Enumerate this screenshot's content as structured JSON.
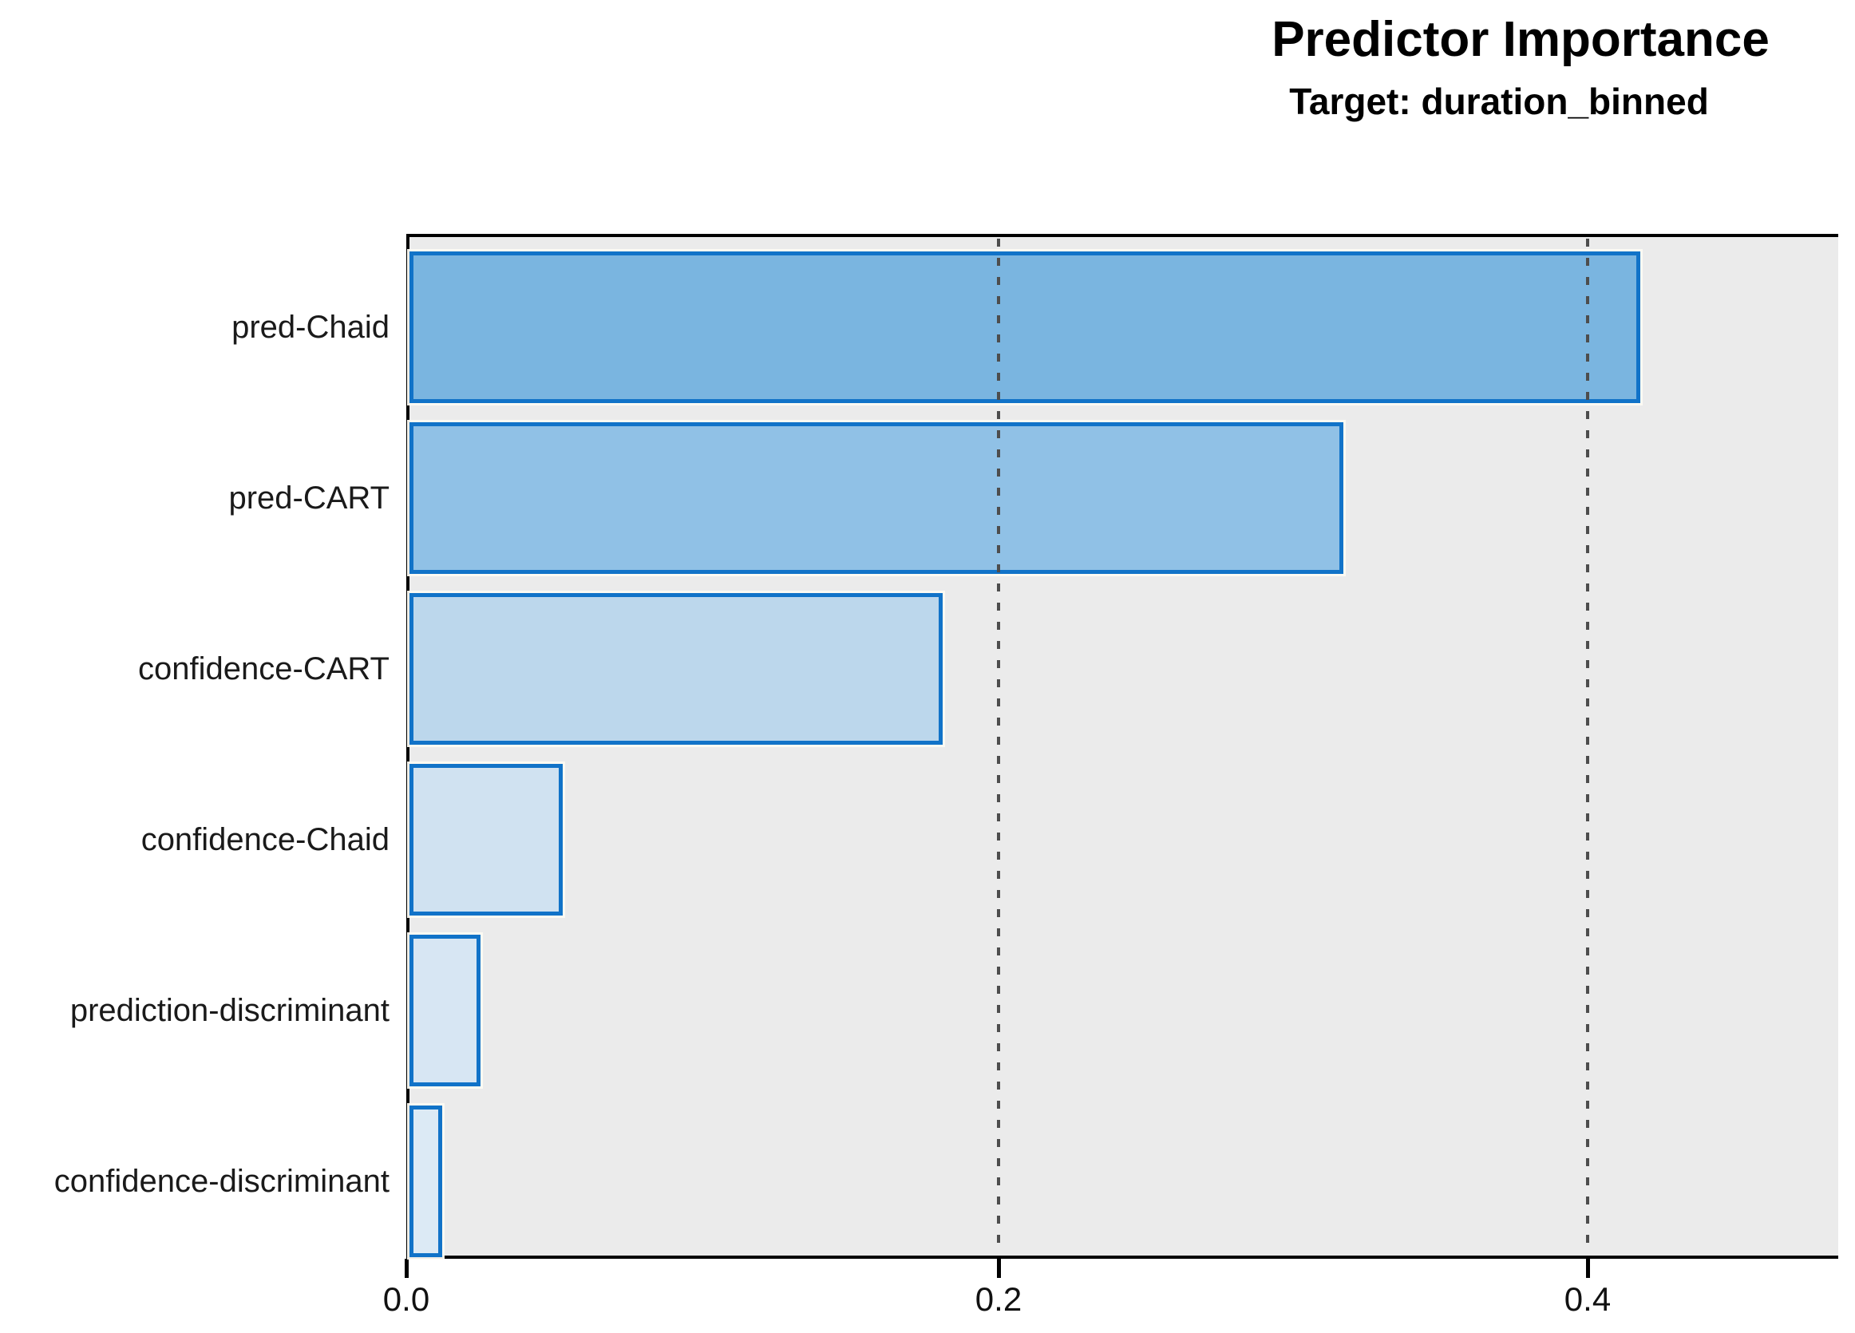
{
  "chart": {
    "title": "Predictor Importance",
    "subtitle": "Target: duration_binned"
  },
  "chart_data": {
    "type": "bar",
    "orientation": "horizontal",
    "title": "Predictor Importance",
    "subtitle": "Target: duration_binned",
    "categories": [
      "pred-Chaid",
      "pred-CART",
      "confidence-CART",
      "confidence-Chaid",
      "prediction-discriminant",
      "confidence-discriminant"
    ],
    "values": [
      0.418,
      0.317,
      0.181,
      0.052,
      0.024,
      0.011
    ],
    "xlabel": "",
    "ylabel": "",
    "xlim": [
      0,
      0.485
    ],
    "x_ticks": [
      0.0,
      0.2,
      0.4
    ],
    "x_tick_labels": [
      "0.0",
      "0.2",
      "0.4"
    ],
    "grid": "vertical dashed gridlines at 0.2 and 0.4, drawn over bars",
    "legend": "none",
    "bars_sorted": "descending importance, largest at top",
    "colors": {
      "bar_fills": [
        "#7ab5e0",
        "#90c1e6",
        "#bcd7ec",
        "#d0e2f1",
        "#d7e6f3",
        "#dceaf5"
      ],
      "bar_border": "#1173c8",
      "plot_background": "#ebebeb",
      "axis_frame": "#000000",
      "gridline": "#4d4d4d",
      "text": "#000000"
    }
  }
}
